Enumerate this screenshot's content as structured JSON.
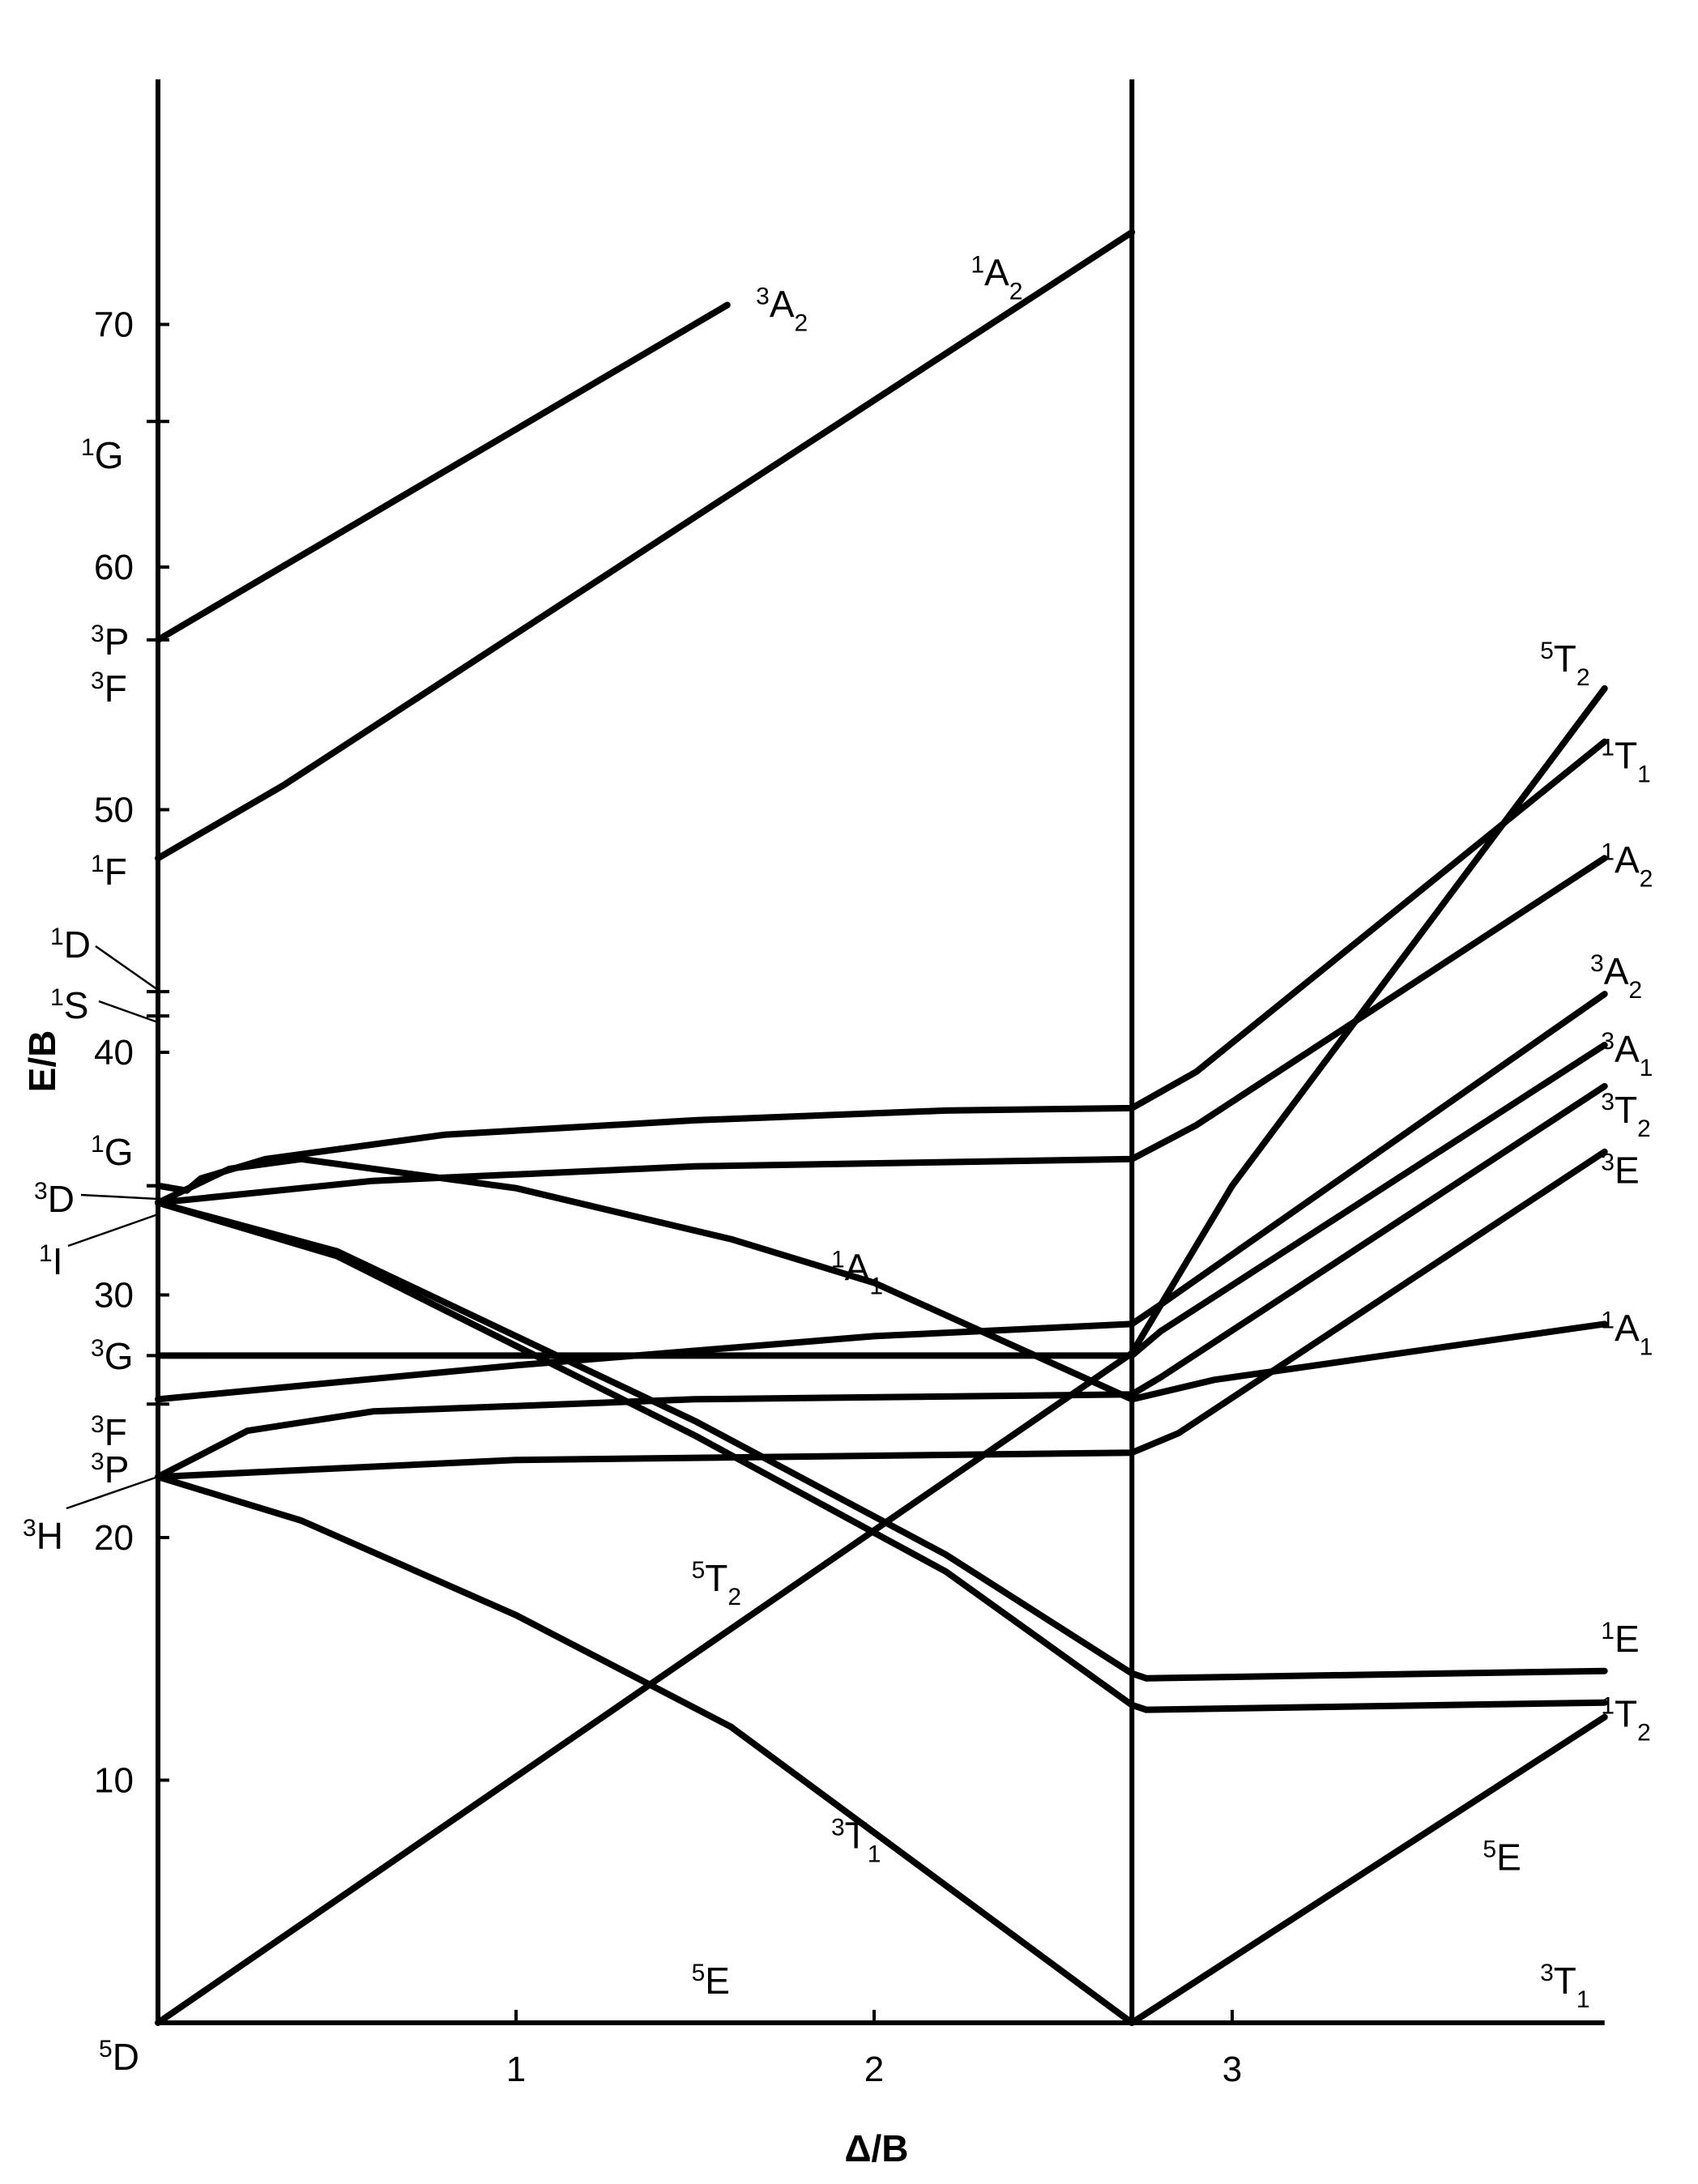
{
  "chart_data": {
    "type": "line",
    "title": "",
    "xlabel": "Δ/B",
    "ylabel": "E/B",
    "xlim": [
      0,
      4.04
    ],
    "ylim": [
      0,
      80
    ],
    "x_ticks": [
      "1",
      "2",
      "3"
    ],
    "y_ticks": [
      "10",
      "20",
      "30",
      "40",
      "50",
      "60",
      "70"
    ],
    "critical_x": 2.72,
    "grid": false,
    "legend": "none",
    "free_ion_terms": [
      {
        "label": "G",
        "mult": "1",
        "y": 66
      },
      {
        "label": "P",
        "mult": "3",
        "y": 57
      },
      {
        "label": "F",
        "mult": "3",
        "y": 57
      },
      {
        "label": "F",
        "mult": "1",
        "y": 48
      },
      {
        "label": "D",
        "mult": "1",
        "y": 42.5
      },
      {
        "label": "S",
        "mult": "1",
        "y": 41.5
      },
      {
        "label": "G",
        "mult": "1",
        "y": 34.5
      },
      {
        "label": "D",
        "mult": "3",
        "y": 34.5
      },
      {
        "label": "I",
        "mult": "1",
        "y": 33.5
      },
      {
        "label": "G",
        "mult": "3",
        "y": 27.5
      },
      {
        "label": "F",
        "mult": "3",
        "y": 25.5
      },
      {
        "label": "P",
        "mult": "3",
        "y": 22.5
      },
      {
        "label": "H",
        "mult": "3",
        "y": 22.5
      },
      {
        "label": "D",
        "mult": "5",
        "y": 0
      }
    ],
    "series": [
      {
        "x": [
          0,
          1.59
        ],
        "y": [
          57,
          70.8
        ]
      },
      {
        "x": [
          0,
          0.35,
          2.72
        ],
        "y": [
          48,
          51,
          73.8
        ]
      },
      {
        "x": [
          0,
          0.08,
          0.12,
          0.3,
          0.8,
          1.5,
          2.2,
          2.72,
          2.9,
          4.04
        ],
        "y": [
          34.5,
          34.3,
          34.8,
          35.6,
          36.6,
          37.2,
          37.6,
          37.7,
          39.2,
          52.8
        ]
      },
      {
        "x": [
          0,
          0.6,
          1.5,
          2.72,
          2.9,
          4.04
        ],
        "y": [
          33.8,
          34.7,
          35.3,
          35.6,
          37,
          48
        ]
      },
      {
        "x": [
          0,
          0.2,
          0.4,
          1.0,
          1.6,
          2.0,
          2.72,
          2.95,
          4.04
        ],
        "y": [
          33.8,
          35.2,
          35.6,
          34.4,
          32.3,
          30.5,
          25.7,
          26.5,
          28.8
        ]
      },
      {
        "x": [
          0,
          0.5,
          1.5,
          2.2,
          2.72,
          2.76
        ],
        "y": [
          33.8,
          31.8,
          24.8,
          19.3,
          14.4,
          14.2
        ]
      },
      {
        "x": [
          0,
          0.5,
          1.5,
          2.2,
          2.72,
          2.76
        ],
        "y": [
          33.8,
          31.6,
          24.2,
          18.6,
          13.1,
          12.9
        ]
      },
      {
        "x": [
          2.76,
          4.04
        ],
        "y": [
          14.2,
          14.5
        ]
      },
      {
        "x": [
          2.76,
          4.04
        ],
        "y": [
          12.9,
          13.2
        ]
      },
      {
        "x": [
          0,
          1.0,
          2.0,
          2.72,
          2.8,
          4.04
        ],
        "y": [
          25.7,
          27.1,
          28.3,
          28.8,
          29.6,
          42.4
        ]
      },
      {
        "x": [
          0,
          2.72
        ],
        "y": [
          27.5,
          27.5
        ]
      },
      {
        "x": [
          2.72,
          2.8,
          4.04
        ],
        "y": [
          27.5,
          28.5,
          40.3
        ]
      },
      {
        "x": [
          0,
          0.25,
          0.6,
          1.5,
          2.72,
          2.8,
          4.04
        ],
        "y": [
          22.5,
          24.4,
          25.2,
          25.7,
          25.9,
          26.6,
          38.6
        ]
      },
      {
        "x": [
          0,
          1.0,
          2.72,
          2.85,
          4.04
        ],
        "y": [
          22.5,
          23.2,
          23.5,
          24.3,
          35.9
        ]
      },
      {
        "x": [
          0,
          0.4,
          1.0,
          1.6,
          2.72
        ],
        "y": [
          22.5,
          20.7,
          16.8,
          12.2,
          0
        ]
      },
      {
        "x": [
          0,
          2.72,
          3.0,
          4.04
        ],
        "y": [
          0,
          27.6,
          34.5,
          55
        ]
      },
      {
        "x": [
          2.72,
          4.04
        ],
        "y": [
          0,
          12.6
        ]
      }
    ],
    "labels": [
      {
        "mult": "3",
        "sym": "A",
        "sub": "2",
        "x": 1.67,
        "y": 70.3
      },
      {
        "mult": "1",
        "sym": "A",
        "sub": "2",
        "x": 2.27,
        "y": 71.6
      },
      {
        "mult": "1",
        "sym": "A",
        "sub": "1",
        "x": 1.88,
        "y": 30.6
      },
      {
        "mult": "5",
        "sym": "T",
        "sub": "2",
        "x": 1.49,
        "y": 17.8
      },
      {
        "mult": "3",
        "sym": "T",
        "sub": "1",
        "x": 1.88,
        "y": 7.2
      },
      {
        "mult": "5",
        "sym": "E",
        "sub": "",
        "x": 1.49,
        "y": 1.2
      },
      {
        "mult": "5",
        "sym": "T",
        "sub": "2",
        "x": 3.86,
        "y": 55.7
      },
      {
        "mult": "1",
        "sym": "T",
        "sub": "1",
        "x": 4.03,
        "y": 51.7
      },
      {
        "mult": "1",
        "sym": "A",
        "sub": "2",
        "x": 4.03,
        "y": 47.4
      },
      {
        "mult": "3",
        "sym": "A",
        "sub": "2",
        "x": 4.0,
        "y": 42.8
      },
      {
        "mult": "3",
        "sym": "A",
        "sub": "1",
        "x": 4.03,
        "y": 39.6
      },
      {
        "mult": "3",
        "sym": "T",
        "sub": "2",
        "x": 4.03,
        "y": 37.1
      },
      {
        "mult": "3",
        "sym": "E",
        "sub": "",
        "x": 4.03,
        "y": 34.6
      },
      {
        "mult": "1",
        "sym": "A",
        "sub": "1",
        "x": 4.03,
        "y": 28.1
      },
      {
        "mult": "1",
        "sym": "E",
        "sub": "",
        "x": 4.03,
        "y": 15.3
      },
      {
        "mult": "1",
        "sym": "T",
        "sub": "2",
        "x": 4.03,
        "y": 12.2
      },
      {
        "mult": "5",
        "sym": "E",
        "sub": "",
        "x": 3.7,
        "y": 6.3
      },
      {
        "mult": "3",
        "sym": "T",
        "sub": "1",
        "x": 3.86,
        "y": 1.2
      }
    ]
  }
}
